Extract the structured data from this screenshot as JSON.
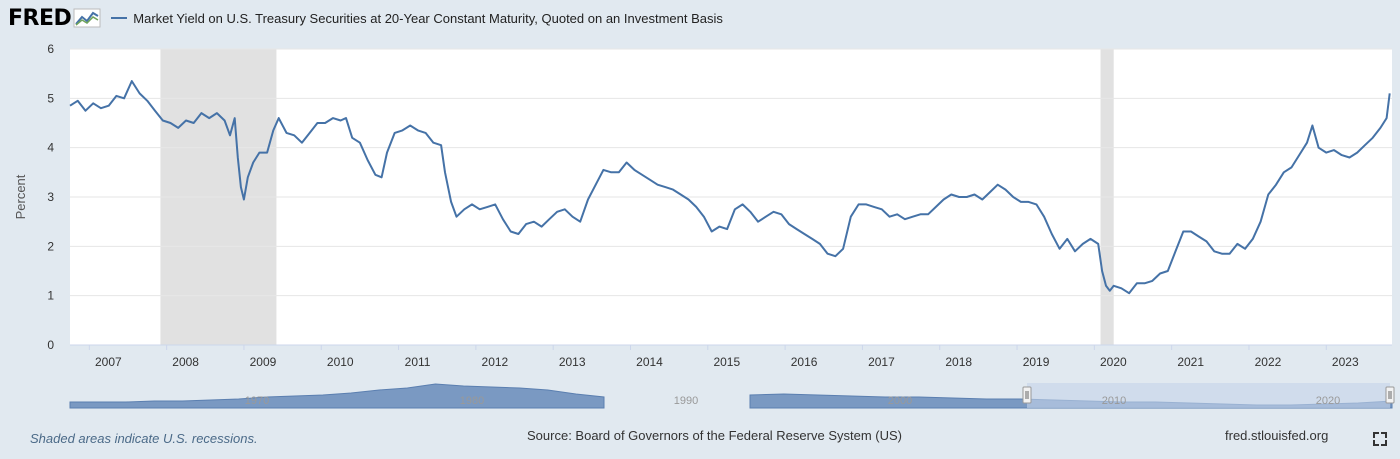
{
  "header": {
    "logo_text": "FRED",
    "logo_icon": "fred-chart-logo-icon",
    "series_title": "Market Yield on U.S. Treasury Securities at 20-Year Constant Maturity, Quoted on an Investment Basis"
  },
  "colors": {
    "line": "#4572a7",
    "recession": "#e1e1e1",
    "grid": "#e6e6e6",
    "background": "#e1e9f0",
    "plot_background": "#ffffff",
    "navigator_fill": "#7a99c2",
    "navigator_selected": "#c4d3ea"
  },
  "footer": {
    "recession_note": "Shaded areas indicate U.S. recessions.",
    "source": "Source: Board of Governors of the Federal Reserve System (US)",
    "site": "fred.stlouisfed.org",
    "fullscreen_icon": "fullscreen-icon"
  },
  "chart_data": {
    "type": "line",
    "title": "Market Yield on U.S. Treasury Securities at 20-Year Constant Maturity, Quoted on an Investment Basis",
    "ylabel": "Percent",
    "xlabel": "",
    "ylim": [
      0,
      6
    ],
    "xlim": [
      2006.75,
      2023.85
    ],
    "yticks": [
      0,
      1,
      2,
      3,
      4,
      5,
      6
    ],
    "xticks": [
      "2007",
      "2008",
      "2009",
      "2010",
      "2011",
      "2012",
      "2013",
      "2014",
      "2015",
      "2016",
      "2017",
      "2018",
      "2019",
      "2020",
      "2021",
      "2022",
      "2023"
    ],
    "grid": true,
    "recessions": [
      [
        2007.92,
        2009.42
      ],
      [
        2020.08,
        2020.25
      ]
    ],
    "series": [
      {
        "name": "",
        "x": [
          2006.75,
          2006.85,
          2006.95,
          2007.05,
          2007.15,
          2007.25,
          2007.35,
          2007.45,
          2007.55,
          2007.65,
          2007.75,
          2007.85,
          2007.95,
          2008.05,
          2008.15,
          2008.25,
          2008.35,
          2008.45,
          2008.55,
          2008.65,
          2008.75,
          2008.82,
          2008.88,
          2008.92,
          2008.96,
          2009.0,
          2009.05,
          2009.12,
          2009.2,
          2009.3,
          2009.38,
          2009.45,
          2009.55,
          2009.65,
          2009.75,
          2009.85,
          2009.95,
          2010.05,
          2010.15,
          2010.25,
          2010.32,
          2010.4,
          2010.5,
          2010.6,
          2010.7,
          2010.78,
          2010.85,
          2010.95,
          2011.05,
          2011.15,
          2011.25,
          2011.35,
          2011.45,
          2011.55,
          2011.6,
          2011.68,
          2011.75,
          2011.85,
          2011.95,
          2012.05,
          2012.15,
          2012.25,
          2012.35,
          2012.45,
          2012.55,
          2012.65,
          2012.75,
          2012.85,
          2012.95,
          2013.05,
          2013.15,
          2013.25,
          2013.35,
          2013.45,
          2013.55,
          2013.65,
          2013.75,
          2013.85,
          2013.95,
          2014.05,
          2014.15,
          2014.25,
          2014.35,
          2014.45,
          2014.55,
          2014.65,
          2014.75,
          2014.85,
          2014.95,
          2015.05,
          2015.15,
          2015.25,
          2015.35,
          2015.45,
          2015.55,
          2015.65,
          2015.75,
          2015.85,
          2015.95,
          2016.05,
          2016.15,
          2016.25,
          2016.35,
          2016.45,
          2016.55,
          2016.65,
          2016.75,
          2016.85,
          2016.95,
          2017.05,
          2017.15,
          2017.25,
          2017.35,
          2017.45,
          2017.55,
          2017.65,
          2017.75,
          2017.85,
          2017.95,
          2018.05,
          2018.15,
          2018.25,
          2018.35,
          2018.45,
          2018.55,
          2018.65,
          2018.75,
          2018.85,
          2018.95,
          2019.05,
          2019.15,
          2019.25,
          2019.35,
          2019.45,
          2019.55,
          2019.65,
          2019.75,
          2019.85,
          2019.95,
          2020.05,
          2020.1,
          2020.15,
          2020.2,
          2020.25,
          2020.35,
          2020.45,
          2020.55,
          2020.65,
          2020.75,
          2020.85,
          2020.95,
          2021.05,
          2021.15,
          2021.25,
          2021.35,
          2021.45,
          2021.55,
          2021.65,
          2021.75,
          2021.85,
          2021.95,
          2022.05,
          2022.15,
          2022.25,
          2022.35,
          2022.45,
          2022.55,
          2022.65,
          2022.75,
          2022.82,
          2022.9,
          2023.0,
          2023.1,
          2023.2,
          2023.3,
          2023.4,
          2023.5,
          2023.6,
          2023.7,
          2023.78,
          2023.82
        ],
        "values": [
          4.85,
          4.95,
          4.75,
          4.9,
          4.8,
          4.85,
          5.05,
          5.0,
          5.35,
          5.1,
          4.95,
          4.75,
          4.55,
          4.5,
          4.4,
          4.55,
          4.5,
          4.7,
          4.6,
          4.7,
          4.55,
          4.25,
          4.6,
          3.8,
          3.2,
          2.95,
          3.4,
          3.7,
          3.9,
          3.9,
          4.35,
          4.6,
          4.3,
          4.25,
          4.1,
          4.3,
          4.5,
          4.5,
          4.6,
          4.55,
          4.6,
          4.2,
          4.1,
          3.75,
          3.45,
          3.4,
          3.9,
          4.3,
          4.35,
          4.45,
          4.35,
          4.3,
          4.1,
          4.05,
          3.5,
          2.9,
          2.6,
          2.75,
          2.85,
          2.75,
          2.8,
          2.85,
          2.55,
          2.3,
          2.25,
          2.45,
          2.5,
          2.4,
          2.55,
          2.7,
          2.75,
          2.6,
          2.5,
          2.95,
          3.25,
          3.55,
          3.5,
          3.5,
          3.7,
          3.55,
          3.45,
          3.35,
          3.25,
          3.2,
          3.15,
          3.05,
          2.95,
          2.8,
          2.6,
          2.3,
          2.4,
          2.35,
          2.75,
          2.85,
          2.7,
          2.5,
          2.6,
          2.7,
          2.65,
          2.45,
          2.35,
          2.25,
          2.15,
          2.05,
          1.85,
          1.8,
          1.95,
          2.6,
          2.85,
          2.85,
          2.8,
          2.75,
          2.6,
          2.65,
          2.55,
          2.6,
          2.65,
          2.65,
          2.8,
          2.95,
          3.05,
          3.0,
          3.0,
          3.05,
          2.95,
          3.1,
          3.25,
          3.15,
          3.0,
          2.9,
          2.9,
          2.85,
          2.6,
          2.25,
          1.95,
          2.15,
          1.9,
          2.05,
          2.15,
          2.05,
          1.5,
          1.2,
          1.1,
          1.2,
          1.15,
          1.05,
          1.25,
          1.25,
          1.3,
          1.45,
          1.5,
          1.9,
          2.3,
          2.3,
          2.2,
          2.1,
          1.9,
          1.85,
          1.85,
          2.05,
          1.95,
          2.15,
          2.5,
          3.05,
          3.25,
          3.5,
          3.6,
          3.85,
          4.1,
          4.45,
          4.0,
          3.9,
          3.95,
          3.85,
          3.8,
          3.9,
          4.05,
          4.2,
          4.4,
          4.6,
          5.1
        ]
      }
    ]
  },
  "navigator": {
    "labels": [
      "1970",
      "1980",
      "1990",
      "2000",
      "2010",
      "2020"
    ]
  }
}
